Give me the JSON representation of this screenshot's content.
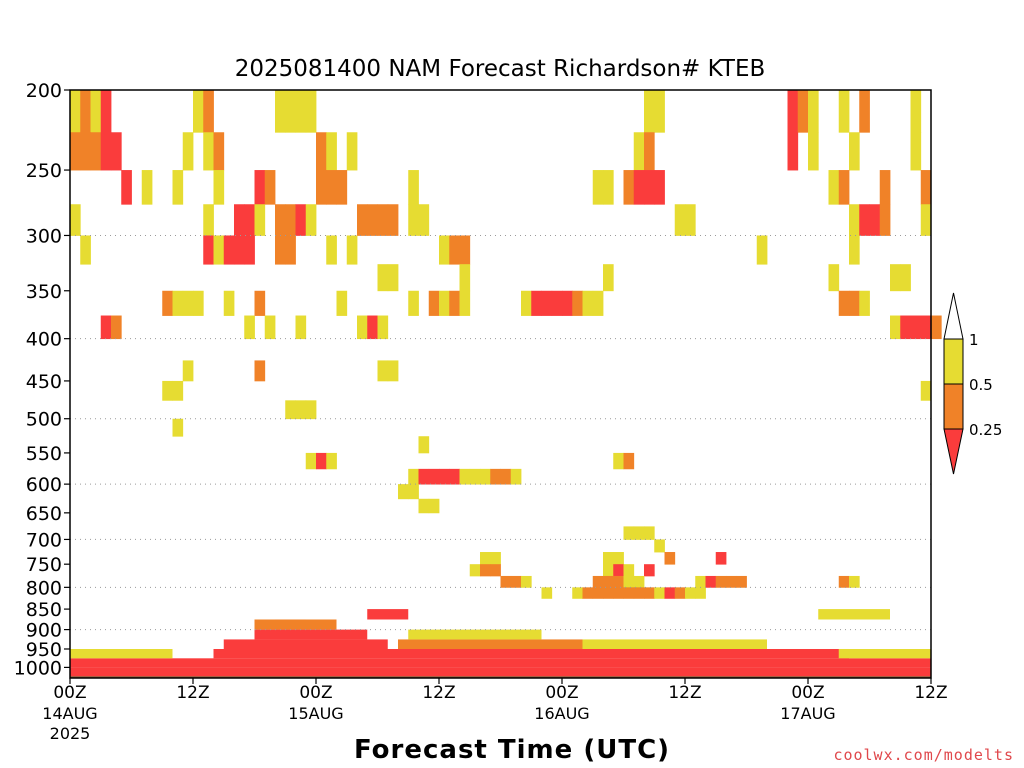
{
  "chart_data": {
    "type": "heatmap",
    "title": "2025081400 NAM Forecast Richardson# KTEB",
    "xlabel": "Forecast Time (UTC)",
    "ylabel": "",
    "y_ticks": [
      200,
      250,
      300,
      350,
      400,
      450,
      500,
      550,
      600,
      650,
      700,
      750,
      800,
      850,
      900,
      950,
      1000
    ],
    "y_range_hpa": [
      200,
      1030
    ],
    "x_range_hours": [
      0,
      84
    ],
    "x_ticks": [
      {
        "hour": 0,
        "label": "00Z",
        "date": "14AUG",
        "year": "2025"
      },
      {
        "hour": 12,
        "label": "12Z",
        "date": "",
        "year": ""
      },
      {
        "hour": 24,
        "label": "00Z",
        "date": "15AUG",
        "year": ""
      },
      {
        "hour": 36,
        "label": "12Z",
        "date": "",
        "year": ""
      },
      {
        "hour": 48,
        "label": "00Z",
        "date": "16AUG",
        "year": ""
      },
      {
        "hour": 60,
        "label": "12Z",
        "date": "",
        "year": ""
      },
      {
        "hour": 72,
        "label": "00Z",
        "date": "17AUG",
        "year": ""
      },
      {
        "hour": 84,
        "label": "12Z",
        "date": "",
        "year": ""
      }
    ],
    "grid_lines_hpa": [
      300,
      400,
      500,
      600,
      700,
      800,
      900
    ],
    "grid": "dotted horizontal",
    "legend": {
      "placement": "right",
      "labels": [
        "1",
        "0.5",
        "0.25"
      ],
      "bins": [
        {
          "range": "> 1",
          "color": "#ffffff"
        },
        {
          "range": "0.5 – 1",
          "color": "#e6dc32"
        },
        {
          "range": "0.25 – 0.5",
          "color": "#f08228"
        },
        {
          "range": "< 0.25",
          "color": "#fa3c3c"
        }
      ]
    },
    "ground_color": "#8c4a26",
    "cell_size": {
      "hours": 1,
      "hpa": 25
    },
    "cells_note": "Each cell: [forecast_hour_start, pressure_top_hPa, bin] where bin 1 = 0.5–1, 2 = 0.25–0.5, 3 = <0.25; cells span 1 h × 25 hPa",
    "cells": [
      [
        0,
        200,
        1
      ],
      [
        1,
        200,
        2
      ],
      [
        2,
        200,
        1
      ],
      [
        3,
        200,
        3
      ],
      [
        12,
        200,
        1
      ],
      [
        13,
        200,
        2
      ],
      [
        20,
        200,
        1
      ],
      [
        21,
        200,
        1
      ],
      [
        22,
        200,
        1
      ],
      [
        23,
        200,
        1
      ],
      [
        56,
        200,
        1
      ],
      [
        57,
        200,
        1
      ],
      [
        70,
        200,
        3
      ],
      [
        71,
        200,
        2
      ],
      [
        72,
        200,
        1
      ],
      [
        75,
        200,
        1
      ],
      [
        77,
        200,
        2
      ],
      [
        82,
        200,
        1
      ],
      [
        0,
        225,
        2
      ],
      [
        1,
        225,
        2
      ],
      [
        2,
        225,
        2
      ],
      [
        3,
        225,
        3
      ],
      [
        4,
        225,
        3
      ],
      [
        11,
        225,
        1
      ],
      [
        13,
        225,
        1
      ],
      [
        14,
        225,
        2
      ],
      [
        24,
        225,
        2
      ],
      [
        25,
        225,
        1
      ],
      [
        27,
        225,
        1
      ],
      [
        55,
        225,
        1
      ],
      [
        56,
        225,
        2
      ],
      [
        70,
        225,
        3
      ],
      [
        72,
        225,
        1
      ],
      [
        76,
        225,
        1
      ],
      [
        82,
        225,
        1
      ],
      [
        5,
        250,
        3
      ],
      [
        7,
        250,
        1
      ],
      [
        10,
        250,
        1
      ],
      [
        14,
        250,
        1
      ],
      [
        18,
        250,
        3
      ],
      [
        19,
        250,
        2
      ],
      [
        24,
        250,
        2
      ],
      [
        25,
        250,
        2
      ],
      [
        26,
        250,
        2
      ],
      [
        33,
        250,
        1
      ],
      [
        51,
        250,
        1
      ],
      [
        52,
        250,
        1
      ],
      [
        54,
        250,
        2
      ],
      [
        55,
        250,
        3
      ],
      [
        56,
        250,
        3
      ],
      [
        57,
        250,
        3
      ],
      [
        74,
        250,
        1
      ],
      [
        75,
        250,
        2
      ],
      [
        79,
        250,
        2
      ],
      [
        83,
        250,
        2
      ],
      [
        0,
        275,
        1
      ],
      [
        13,
        275,
        1
      ],
      [
        16,
        275,
        3
      ],
      [
        17,
        275,
        3
      ],
      [
        18,
        275,
        1
      ],
      [
        20,
        275,
        2
      ],
      [
        21,
        275,
        2
      ],
      [
        22,
        275,
        3
      ],
      [
        23,
        275,
        1
      ],
      [
        28,
        275,
        2
      ],
      [
        29,
        275,
        2
      ],
      [
        30,
        275,
        2
      ],
      [
        31,
        275,
        2
      ],
      [
        33,
        275,
        1
      ],
      [
        34,
        275,
        1
      ],
      [
        59,
        275,
        1
      ],
      [
        60,
        275,
        1
      ],
      [
        76,
        275,
        1
      ],
      [
        77,
        275,
        3
      ],
      [
        78,
        275,
        3
      ],
      [
        79,
        275,
        2
      ],
      [
        83,
        275,
        1
      ],
      [
        1,
        300,
        1
      ],
      [
        13,
        300,
        3
      ],
      [
        14,
        300,
        1
      ],
      [
        15,
        300,
        3
      ],
      [
        16,
        300,
        3
      ],
      [
        17,
        300,
        3
      ],
      [
        20,
        300,
        2
      ],
      [
        21,
        300,
        2
      ],
      [
        25,
        300,
        1
      ],
      [
        27,
        300,
        1
      ],
      [
        36,
        300,
        1
      ],
      [
        37,
        300,
        2
      ],
      [
        38,
        300,
        2
      ],
      [
        67,
        300,
        1
      ],
      [
        76,
        300,
        1
      ],
      [
        30,
        325,
        1
      ],
      [
        31,
        325,
        1
      ],
      [
        38,
        325,
        1
      ],
      [
        52,
        325,
        1
      ],
      [
        74,
        325,
        1
      ],
      [
        80,
        325,
        1
      ],
      [
        81,
        325,
        1
      ],
      [
        9,
        350,
        2
      ],
      [
        10,
        350,
        1
      ],
      [
        11,
        350,
        1
      ],
      [
        12,
        350,
        1
      ],
      [
        15,
        350,
        1
      ],
      [
        18,
        350,
        2
      ],
      [
        26,
        350,
        1
      ],
      [
        33,
        350,
        1
      ],
      [
        35,
        350,
        2
      ],
      [
        36,
        350,
        1
      ],
      [
        37,
        350,
        2
      ],
      [
        38,
        350,
        1
      ],
      [
        44,
        350,
        1
      ],
      [
        45,
        350,
        3
      ],
      [
        46,
        350,
        3
      ],
      [
        47,
        350,
        3
      ],
      [
        48,
        350,
        3
      ],
      [
        49,
        350,
        2
      ],
      [
        50,
        350,
        1
      ],
      [
        51,
        350,
        1
      ],
      [
        75,
        350,
        2
      ],
      [
        76,
        350,
        2
      ],
      [
        77,
        350,
        1
      ],
      [
        3,
        375,
        3
      ],
      [
        4,
        375,
        2
      ],
      [
        17,
        375,
        1
      ],
      [
        19,
        375,
        1
      ],
      [
        22,
        375,
        1
      ],
      [
        28,
        375,
        1
      ],
      [
        29,
        375,
        3
      ],
      [
        30,
        375,
        1
      ],
      [
        80,
        375,
        1
      ],
      [
        81,
        375,
        3
      ],
      [
        82,
        375,
        3
      ],
      [
        83,
        375,
        3
      ],
      [
        84,
        375,
        2
      ],
      [
        11,
        425,
        1
      ],
      [
        18,
        425,
        2
      ],
      [
        30,
        425,
        1
      ],
      [
        31,
        425,
        1
      ],
      [
        9,
        450,
        1
      ],
      [
        10,
        450,
        1
      ],
      [
        83,
        450,
        1
      ],
      [
        21,
        475,
        1
      ],
      [
        22,
        475,
        1
      ],
      [
        23,
        475,
        1
      ],
      [
        10,
        500,
        1
      ],
      [
        23,
        550,
        1
      ],
      [
        24,
        550,
        3
      ],
      [
        25,
        550,
        1
      ],
      [
        53,
        550,
        1
      ],
      [
        54,
        550,
        2
      ],
      [
        34,
        525,
        1
      ],
      [
        33,
        575,
        1
      ],
      [
        34,
        575,
        3
      ],
      [
        35,
        575,
        3
      ],
      [
        36,
        575,
        3
      ],
      [
        37,
        575,
        3
      ],
      [
        38,
        575,
        1
      ],
      [
        39,
        575,
        1
      ],
      [
        40,
        575,
        1
      ],
      [
        41,
        575,
        2
      ],
      [
        42,
        575,
        2
      ],
      [
        43,
        575,
        1
      ],
      [
        32,
        600,
        1
      ],
      [
        33,
        600,
        1
      ],
      [
        34,
        625,
        1
      ],
      [
        35,
        625,
        1
      ],
      [
        54,
        675,
        1
      ],
      [
        55,
        675,
        1
      ],
      [
        56,
        675,
        1
      ],
      [
        57,
        700,
        1
      ],
      [
        40,
        725,
        1
      ],
      [
        41,
        725,
        1
      ],
      [
        52,
        725,
        1
      ],
      [
        53,
        725,
        1
      ],
      [
        58,
        725,
        2
      ],
      [
        63,
        725,
        3
      ],
      [
        39,
        750,
        1
      ],
      [
        40,
        750,
        2
      ],
      [
        41,
        750,
        2
      ],
      [
        52,
        750,
        1
      ],
      [
        53,
        750,
        3
      ],
      [
        54,
        750,
        1
      ],
      [
        56,
        750,
        3
      ],
      [
        42,
        775,
        2
      ],
      [
        43,
        775,
        2
      ],
      [
        44,
        775,
        1
      ],
      [
        51,
        775,
        2
      ],
      [
        52,
        775,
        2
      ],
      [
        53,
        775,
        2
      ],
      [
        54,
        775,
        1
      ],
      [
        55,
        775,
        1
      ],
      [
        61,
        775,
        1
      ],
      [
        62,
        775,
        3
      ],
      [
        63,
        775,
        2
      ],
      [
        64,
        775,
        2
      ],
      [
        65,
        775,
        2
      ],
      [
        75,
        775,
        2
      ],
      [
        76,
        775,
        1
      ],
      [
        46,
        800,
        1
      ],
      [
        49,
        800,
        1
      ],
      [
        50,
        800,
        2
      ],
      [
        51,
        800,
        2
      ],
      [
        52,
        800,
        2
      ],
      [
        53,
        800,
        2
      ],
      [
        54,
        800,
        2
      ],
      [
        55,
        800,
        2
      ],
      [
        56,
        800,
        2
      ],
      [
        57,
        800,
        1
      ],
      [
        58,
        800,
        3
      ],
      [
        59,
        800,
        2
      ],
      [
        60,
        800,
        1
      ],
      [
        61,
        800,
        1
      ]
    ],
    "boundary_layer": [
      {
        "h0": 0,
        "h1": 84,
        "p": 1000,
        "bin": 3
      },
      {
        "h0": 0,
        "h1": 84,
        "p": 975,
        "bin": 3
      },
      {
        "h0": 14,
        "h1": 76,
        "p": 950,
        "bin": 3
      },
      {
        "h0": 15,
        "h1": 31,
        "p": 925,
        "bin": 3
      },
      {
        "h0": 32,
        "h1": 50,
        "p": 925,
        "bin": 2
      },
      {
        "h0": 50,
        "h1": 68,
        "p": 925,
        "bin": 1
      },
      {
        "h0": 18,
        "h1": 29,
        "p": 900,
        "bin": 3
      },
      {
        "h0": 33,
        "h1": 46,
        "p": 900,
        "bin": 1
      },
      {
        "h0": 20,
        "h1": 23,
        "p": 875,
        "bin": 3
      },
      {
        "h0": 18,
        "h1": 26,
        "p": 875,
        "bin": 2
      },
      {
        "h0": 0,
        "h1": 10,
        "p": 950,
        "bin": 1
      },
      {
        "h0": 75,
        "h1": 84,
        "p": 950,
        "bin": 1
      },
      {
        "h0": 29,
        "h1": 33,
        "p": 850,
        "bin": 3
      },
      {
        "h0": 73,
        "h1": 80,
        "p": 850,
        "bin": 1
      }
    ]
  },
  "credit": "coolwx.com/modelts"
}
